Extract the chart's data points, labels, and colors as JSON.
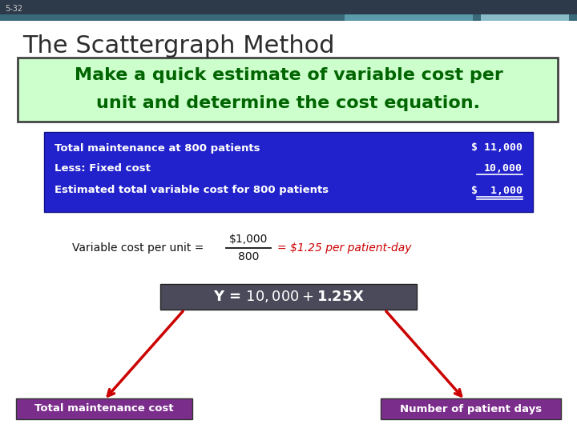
{
  "slide_number": "5-32",
  "title": "The Scattergraph Method",
  "subtitle_line1": "Make a quick estimate of variable cost per",
  "subtitle_line2": "unit and determine the cost equation.",
  "subtitle_color": "#006400",
  "subtitle_bg": "#ccffcc",
  "subtitle_border": "#444444",
  "table_rows": [
    {
      "label": "Total maintenance at 800 patients",
      "value": "$ 11,000",
      "underline": false
    },
    {
      "label": "Less: Fixed cost",
      "value": "10,000",
      "underline": true
    },
    {
      "label": "Estimated total variable cost for 800 patients",
      "value": "$  1,000",
      "underline": true
    }
  ],
  "table_bg": "#2222cc",
  "table_text_color": "#ffffff",
  "equation_box_text": "Y = $10,000 + $1.25X",
  "equation_box_bg": "#4a4a5a",
  "equation_box_text_color": "#ffffff",
  "label_left_text": "Total maintenance cost",
  "label_right_text": "Number of patient days",
  "label_bg": "#7b2d8b",
  "label_text_color": "#ffffff",
  "arrow_color": "#cc0000",
  "header_bg": "#2d3a4a",
  "header_bg2": "#3a6a7a",
  "header_rect1_color": "#5a9aaa",
  "header_rect2_color": "#8abbc8",
  "slide_num_color": "#cccccc",
  "background_color": "#ffffff",
  "title_color": "#2d2d2d"
}
